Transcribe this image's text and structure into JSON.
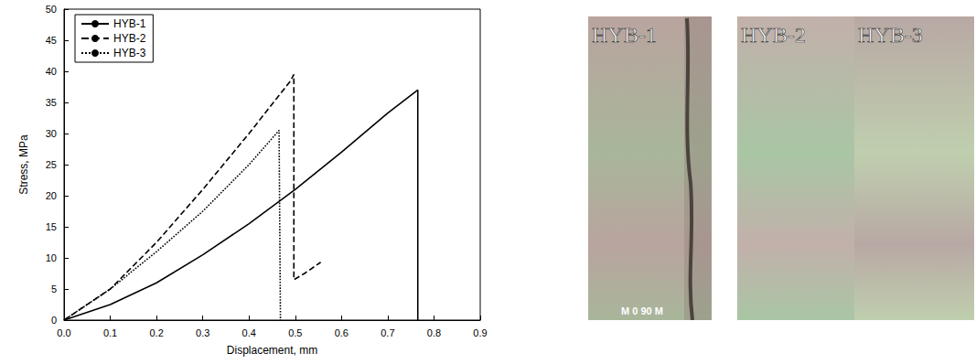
{
  "chart_data": {
    "type": "line",
    "xlabel": "Displacement, mm",
    "ylabel": "Stress, MPa",
    "xlim": [
      0,
      0.9
    ],
    "xticks": [
      {
        "value": 0,
        "label": "0.0"
      },
      0.1,
      0.2,
      0.3,
      0.4,
      0.5,
      0.6,
      0.7,
      0.8,
      0.9
    ],
    "ylim": [
      0,
      50
    ],
    "yticks": [
      0,
      5,
      10,
      15,
      20,
      25,
      30,
      35,
      40,
      45,
      50
    ],
    "grid": false,
    "legend": "upper left",
    "series": [
      {
        "name": "HYB-1",
        "color": "#000000",
        "line_style": "solid",
        "x": [
          0,
          0.1,
          0.2,
          0.3,
          0.4,
          0.5,
          0.6,
          0.7,
          0.765,
          0.765,
          0.765
        ],
        "values": [
          0,
          2.5,
          6,
          10.5,
          15.5,
          21,
          27,
          33.3,
          37,
          18,
          0
        ]
      },
      {
        "name": "HYB-2",
        "color": "#000000",
        "line_style": "dashed",
        "x": [
          0,
          0.1,
          0.2,
          0.3,
          0.4,
          0.49,
          0.497,
          0.497,
          0.52,
          0.555
        ],
        "values": [
          0,
          5,
          12.5,
          21,
          30,
          38.5,
          39.5,
          6.5,
          7.5,
          9.3
        ]
      },
      {
        "name": "HYB-3",
        "color": "#000000",
        "line_style": "dotted",
        "x": [
          0,
          0.1,
          0.2,
          0.3,
          0.4,
          0.465,
          0.468
        ],
        "values": [
          0,
          5,
          11,
          17.5,
          25,
          30.5,
          0
        ]
      }
    ]
  },
  "panels": [
    {
      "label": "HYB-1",
      "caption": "M 0 90 M"
    },
    {
      "label": "HYB-2"
    },
    {
      "label": "HYB-3"
    }
  ]
}
